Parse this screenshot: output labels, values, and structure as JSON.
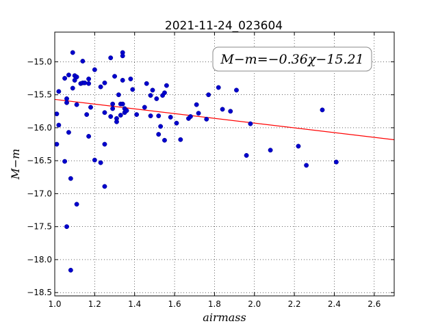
{
  "chart_data": {
    "type": "scatter",
    "title": "2021-11-24_023604",
    "xlabel": "airmass",
    "ylabel": "M−m",
    "xlim": [
      1.0,
      2.7
    ],
    "ylim": [
      -18.55,
      -14.55
    ],
    "y_inverted": true,
    "grid": true,
    "grid_style": "dotted",
    "xticks": [
      "1.0",
      "1.2",
      "1.4",
      "1.6",
      "1.8",
      "2.0",
      "2.2",
      "2.4",
      "2.6"
    ],
    "yticks": [
      "−15.0",
      "−15.5",
      "−16.0",
      "−16.5",
      "−17.0",
      "−17.5",
      "−18.0",
      "−18.5"
    ],
    "annotation": "M−m=−0.36χ−15.21",
    "fit": {
      "slope": -0.36,
      "intercept": -15.21,
      "color": "#ff0000"
    },
    "point_color": "#0000cc",
    "points": [
      [
        1.01,
        -15.79
      ],
      [
        1.01,
        -16.25
      ],
      [
        1.02,
        -15.45
      ],
      [
        1.02,
        -15.96
      ],
      [
        1.05,
        -16.51
      ],
      [
        1.05,
        -15.25
      ],
      [
        1.06,
        -15.56
      ],
      [
        1.06,
        -15.62
      ],
      [
        1.06,
        -17.5
      ],
      [
        1.07,
        -15.2
      ],
      [
        1.07,
        -16.07
      ],
      [
        1.08,
        -16.77
      ],
      [
        1.08,
        -18.16
      ],
      [
        1.09,
        -14.86
      ],
      [
        1.09,
        -15.4
      ],
      [
        1.1,
        -15.21
      ],
      [
        1.1,
        -15.28
      ],
      [
        1.11,
        -15.65
      ],
      [
        1.11,
        -15.23
      ],
      [
        1.11,
        -17.16
      ],
      [
        1.13,
        -15.33
      ],
      [
        1.14,
        -15.32
      ],
      [
        1.14,
        -14.99
      ],
      [
        1.15,
        -15.32
      ],
      [
        1.16,
        -15.8
      ],
      [
        1.17,
        -16.13
      ],
      [
        1.17,
        -15.26
      ],
      [
        1.17,
        -15.33
      ],
      [
        1.18,
        -15.69
      ],
      [
        1.2,
        -15.12
      ],
      [
        1.2,
        -16.49
      ],
      [
        1.23,
        -15.38
      ],
      [
        1.23,
        -16.53
      ],
      [
        1.25,
        -15.32
      ],
      [
        1.25,
        -15.77
      ],
      [
        1.25,
        -16.89
      ],
      [
        1.25,
        -16.25
      ],
      [
        1.28,
        -14.94
      ],
      [
        1.28,
        -15.83
      ],
      [
        1.29,
        -15.64
      ],
      [
        1.29,
        -15.71
      ],
      [
        1.3,
        -15.22
      ],
      [
        1.31,
        -15.86
      ],
      [
        1.31,
        -15.91
      ],
      [
        1.32,
        -15.5
      ],
      [
        1.33,
        -15.81
      ],
      [
        1.33,
        -15.64
      ],
      [
        1.34,
        -14.86
      ],
      [
        1.34,
        -14.91
      ],
      [
        1.34,
        -15.64
      ],
      [
        1.34,
        -15.28
      ],
      [
        1.35,
        -15.77
      ],
      [
        1.35,
        -15.71
      ],
      [
        1.36,
        -15.74
      ],
      [
        1.38,
        -15.26
      ],
      [
        1.39,
        -15.42
      ],
      [
        1.41,
        -15.8
      ],
      [
        1.45,
        -15.69
      ],
      [
        1.46,
        -15.33
      ],
      [
        1.48,
        -15.51
      ],
      [
        1.48,
        -15.82
      ],
      [
        1.49,
        -15.43
      ],
      [
        1.51,
        -15.56
      ],
      [
        1.52,
        -15.82
      ],
      [
        1.52,
        -16.1
      ],
      [
        1.53,
        -15.98
      ],
      [
        1.54,
        -15.51
      ],
      [
        1.55,
        -15.47
      ],
      [
        1.55,
        -16.19
      ],
      [
        1.56,
        -15.36
      ],
      [
        1.58,
        -15.84
      ],
      [
        1.61,
        -15.93
      ],
      [
        1.63,
        -16.18
      ],
      [
        1.67,
        -15.86
      ],
      [
        1.68,
        -15.83
      ],
      [
        1.71,
        -15.65
      ],
      [
        1.72,
        -15.78
      ],
      [
        1.76,
        -15.87
      ],
      [
        1.77,
        -15.5
      ],
      [
        1.82,
        -15.39
      ],
      [
        1.84,
        -15.72
      ],
      [
        1.88,
        -15.75
      ],
      [
        1.91,
        -15.43
      ],
      [
        1.96,
        -16.42
      ],
      [
        1.98,
        -15.94
      ],
      [
        2.08,
        -16.34
      ],
      [
        2.22,
        -16.28
      ],
      [
        2.26,
        -16.57
      ],
      [
        2.34,
        -15.73
      ],
      [
        2.41,
        -16.52
      ]
    ]
  }
}
